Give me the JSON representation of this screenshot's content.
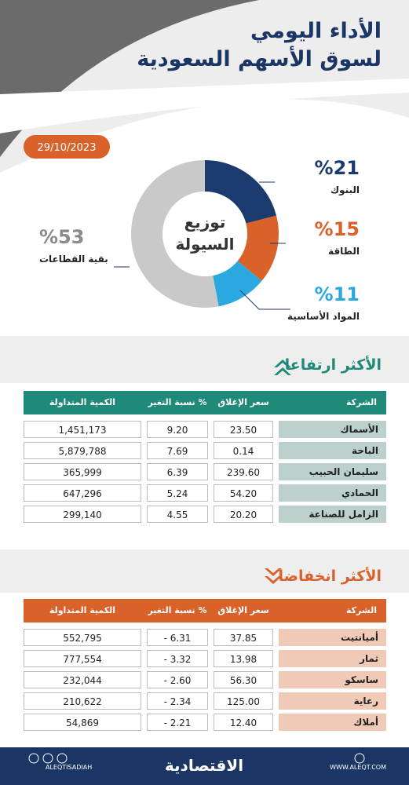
{
  "header": {
    "title_line1": "الأداء اليومي",
    "title_line2": "لسوق الأسهم السعودية"
  },
  "date": "29/10/2023",
  "chart_data": {
    "type": "pie",
    "title_lines": [
      "توزيع",
      "السيولة"
    ],
    "categories": [
      "البنوك",
      "الطاقة",
      "المواد الأساسية",
      "بقية القطاعات"
    ],
    "values": [
      21,
      15,
      11,
      53
    ],
    "value_labels": [
      "%21",
      "%15",
      "%11",
      "%53"
    ],
    "colors": [
      "#1b3a6e",
      "#d8622a",
      "#2aa9e1",
      "#c9c9c9"
    ]
  },
  "gainers": {
    "title": "الأكثر ارتفاعا",
    "columns": [
      "الشركة",
      "سعر الإغلاق",
      "نسبة التغير %",
      "الكمية المتداولة"
    ],
    "rows": [
      [
        "الأسماك",
        "23.50",
        "9.20",
        "1,451,173"
      ],
      [
        "الباحة",
        "0.14",
        "7.69",
        "5,879,788"
      ],
      [
        "سليمان الحبيب",
        "239.60",
        "6.39",
        "365,999"
      ],
      [
        "الحمادي",
        "54.20",
        "5.24",
        "647,296"
      ],
      [
        "الزامل للصناعة",
        "20.20",
        "4.55",
        "299,140"
      ]
    ]
  },
  "losers": {
    "title": "الأكثر انخفاضا",
    "columns": [
      "الشركة",
      "سعر الإغلاق",
      "نسبة التغير %",
      "الكمية المتداولة"
    ],
    "rows": [
      [
        "أميانتيت",
        "37.85",
        "- 6.31",
        "552,795"
      ],
      [
        "ثمار",
        "13.98",
        "- 3.32",
        "777,554"
      ],
      [
        "ساسكو",
        "56.30",
        "- 2.60",
        "232,044"
      ],
      [
        "رعاية",
        "125.00",
        "- 2.34",
        "210,622"
      ],
      [
        "أملاك",
        "12.40",
        "- 2.21",
        "54,869"
      ]
    ]
  },
  "footer": {
    "handle": "ALEQTISADIAH",
    "brand": "الاقتصادية",
    "site": "WWW.ALEQT.COM"
  }
}
